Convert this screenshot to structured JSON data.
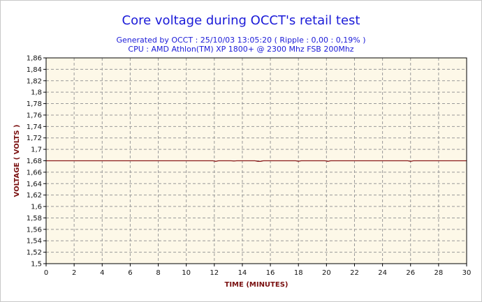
{
  "header": {
    "title": "Core voltage during OCCT's retail test",
    "subtitle_1": "Generated by OCCT : 25/10/03 13:05:20 ( Ripple : 0,00 : 0,19% )",
    "subtitle_2": "CPU : AMD Athlon(TM) XP 1800+ @ 2300 Mhz FSB 200Mhz"
  },
  "chart_data": {
    "type": "line",
    "title": "Core voltage during OCCT's retail test",
    "xlabel": "TIME (MINUTES)",
    "ylabel": "VOLTAGE ( VOLTS )",
    "xlim": [
      0,
      30
    ],
    "ylim": [
      1.5,
      1.86
    ],
    "x_ticks": [
      "0",
      "2",
      "4",
      "6",
      "8",
      "10",
      "12",
      "14",
      "16",
      "18",
      "20",
      "22",
      "24",
      "26",
      "28",
      "30"
    ],
    "y_ticks": [
      "1,5",
      "1,52",
      "1,54",
      "1,56",
      "1,58",
      "1,6",
      "1,62",
      "1,64",
      "1,66",
      "1,68",
      "1,7",
      "1,72",
      "1,74",
      "1,76",
      "1,78",
      "1,8",
      "1,82",
      "1,84",
      "1,86"
    ],
    "grid": true,
    "series": [
      {
        "x": [
          0,
          11.9,
          12.1,
          12.3,
          13.2,
          13.4,
          13.6,
          14.9,
          15.1,
          15.3,
          15.5,
          17.8,
          18.0,
          18.2,
          19.9,
          20.1,
          20.3,
          25.8,
          26.0,
          26.2,
          30
        ],
        "y": [
          1.68,
          1.68,
          1.679,
          1.68,
          1.68,
          1.6795,
          1.68,
          1.68,
          1.679,
          1.679,
          1.68,
          1.68,
          1.6792,
          1.68,
          1.68,
          1.679,
          1.68,
          1.68,
          1.679,
          1.68,
          1.68
        ]
      }
    ],
    "colors": {
      "line": "#8b1a1a",
      "plot_background": "#fdf8e8",
      "grid": "#999999",
      "title": "#1a1ad8",
      "axis_title": "#7a1010"
    }
  }
}
